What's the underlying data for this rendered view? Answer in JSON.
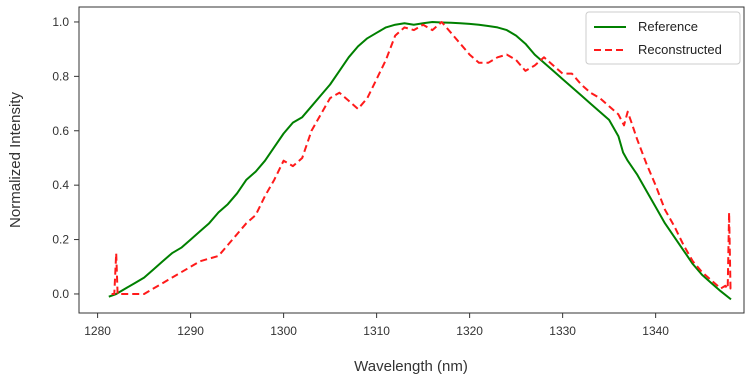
{
  "chart_data": {
    "type": "line",
    "xlabel": "Wavelength (nm)",
    "ylabel": "Normalized Intensity",
    "xlim": [
      1278,
      1349.5
    ],
    "ylim": [
      -0.07,
      1.055
    ],
    "xticks": [
      1280,
      1290,
      1300,
      1310,
      1320,
      1330,
      1340
    ],
    "yticks": [
      0.0,
      0.2,
      0.4,
      0.6,
      0.8,
      1.0
    ],
    "xtick_labels": [
      "1280",
      "1290",
      "1300",
      "1310",
      "1320",
      "1330",
      "1340"
    ],
    "ytick_labels": [
      "0.0",
      "0.2",
      "0.4",
      "0.6",
      "0.8",
      "1.0"
    ],
    "grid": false,
    "legend_position": "top-right",
    "series": [
      {
        "name": "Reference",
        "color": "#008000",
        "style": "solid",
        "x": [
          1281.2,
          1282,
          1283,
          1284,
          1285,
          1286,
          1287,
          1288,
          1289,
          1290,
          1291,
          1292,
          1293,
          1294,
          1295,
          1296,
          1297,
          1298,
          1299,
          1300,
          1301,
          1302,
          1303,
          1304,
          1305,
          1306,
          1307,
          1308,
          1309,
          1310,
          1311,
          1312,
          1313,
          1314,
          1315,
          1316,
          1317,
          1318,
          1319,
          1320,
          1321,
          1322,
          1323,
          1324,
          1325,
          1326,
          1327,
          1328,
          1329,
          1330,
          1331,
          1332,
          1333,
          1334,
          1335,
          1336,
          1336.5,
          1337,
          1338,
          1339,
          1340,
          1341,
          1342,
          1343,
          1344,
          1345,
          1346,
          1347,
          1348.1
        ],
        "y": [
          -0.01,
          0.0,
          0.02,
          0.04,
          0.06,
          0.09,
          0.12,
          0.15,
          0.17,
          0.2,
          0.23,
          0.26,
          0.3,
          0.33,
          0.37,
          0.42,
          0.45,
          0.49,
          0.54,
          0.59,
          0.63,
          0.65,
          0.69,
          0.73,
          0.77,
          0.82,
          0.87,
          0.91,
          0.94,
          0.96,
          0.98,
          0.99,
          0.995,
          0.99,
          0.995,
          1.0,
          0.998,
          0.997,
          0.995,
          0.993,
          0.99,
          0.985,
          0.98,
          0.97,
          0.95,
          0.92,
          0.88,
          0.85,
          0.82,
          0.79,
          0.76,
          0.73,
          0.7,
          0.67,
          0.64,
          0.58,
          0.52,
          0.49,
          0.44,
          0.38,
          0.32,
          0.26,
          0.21,
          0.16,
          0.11,
          0.07,
          0.04,
          0.01,
          -0.02
        ]
      },
      {
        "name": "Reconstructed",
        "color": "#ff1a1a",
        "style": "dashed",
        "x": [
          1281.5,
          1281.8,
          1282.0,
          1282.15,
          1282.3,
          1283,
          1284,
          1285,
          1286,
          1287,
          1288,
          1289,
          1290,
          1291,
          1292,
          1293,
          1294,
          1295,
          1296,
          1297,
          1298,
          1299,
          1300,
          1301,
          1302,
          1303,
          1304,
          1305,
          1306,
          1307,
          1308,
          1309,
          1310,
          1311,
          1312,
          1313,
          1314,
          1315,
          1316,
          1317,
          1318,
          1319,
          1320,
          1321,
          1322,
          1323,
          1324,
          1325,
          1326,
          1327,
          1328,
          1329,
          1330,
          1331,
          1332,
          1333,
          1334,
          1335,
          1336,
          1336.6,
          1337,
          1337.4,
          1338,
          1339,
          1340,
          1341,
          1342,
          1343,
          1344,
          1345,
          1346,
          1347,
          1347.5,
          1347.75,
          1347.9,
          1348.05,
          1348.2
        ],
        "y": [
          0.0,
          0.0,
          0.15,
          0.0,
          0.0,
          0.0,
          0.0,
          0.0,
          0.02,
          0.04,
          0.06,
          0.08,
          0.1,
          0.12,
          0.13,
          0.14,
          0.18,
          0.22,
          0.26,
          0.29,
          0.36,
          0.42,
          0.49,
          0.47,
          0.5,
          0.6,
          0.66,
          0.72,
          0.74,
          0.71,
          0.68,
          0.72,
          0.79,
          0.86,
          0.95,
          0.98,
          0.97,
          0.99,
          0.97,
          1.0,
          0.96,
          0.92,
          0.88,
          0.85,
          0.85,
          0.87,
          0.88,
          0.86,
          0.82,
          0.84,
          0.87,
          0.84,
          0.81,
          0.81,
          0.77,
          0.74,
          0.72,
          0.69,
          0.66,
          0.62,
          0.67,
          0.63,
          0.57,
          0.48,
          0.4,
          0.31,
          0.25,
          0.18,
          0.12,
          0.08,
          0.05,
          0.02,
          0.03,
          0.02,
          0.3,
          0.02,
          0.03
        ]
      }
    ]
  }
}
